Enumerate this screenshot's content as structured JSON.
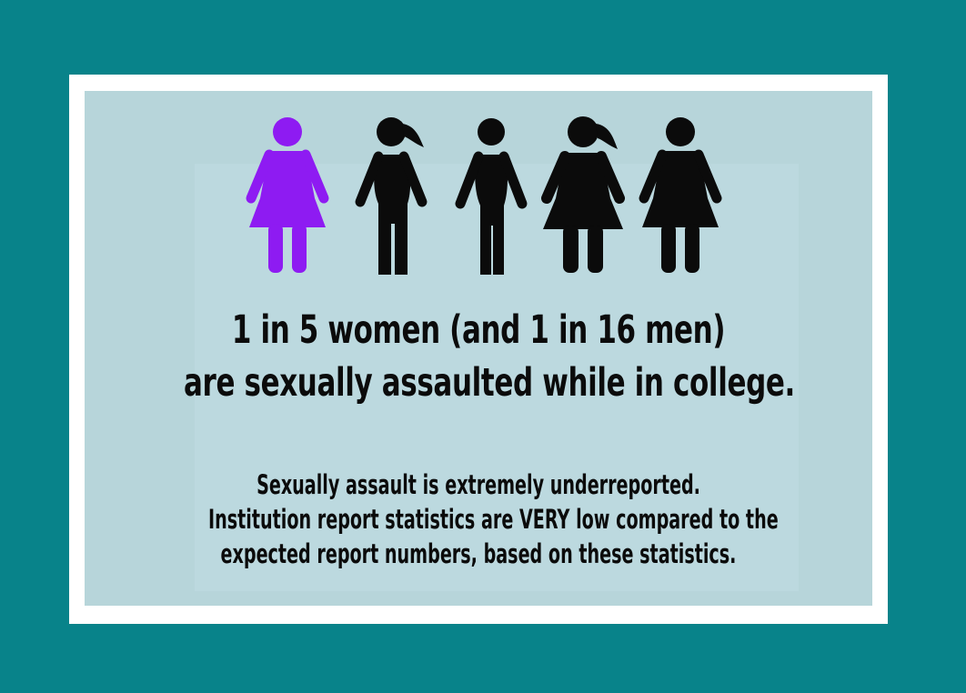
{
  "colors": {
    "background": "#08838a",
    "card_border": "#ffffff",
    "panel": "#b7d5da",
    "highlight_figure": "#8e1bf2",
    "figure": "#0b0b0b"
  },
  "figures": [
    {
      "icon": "woman-dress-icon",
      "highlighted": true
    },
    {
      "icon": "woman-ponytail-icon",
      "highlighted": false
    },
    {
      "icon": "woman-icon",
      "highlighted": false
    },
    {
      "icon": "woman-ponytail-dress-icon",
      "highlighted": false
    },
    {
      "icon": "woman-dress-icon",
      "highlighted": false
    }
  ],
  "headline": {
    "line1": "1 in 5 women (and 1 in 16 men)",
    "line2": "are sexually assaulted while in college."
  },
  "body": {
    "line1": "Sexually assault is extremely underreported.",
    "line2": "Institution report statistics are VERY low compared to the",
    "line3": "expected report numbers, based on these statistics."
  }
}
